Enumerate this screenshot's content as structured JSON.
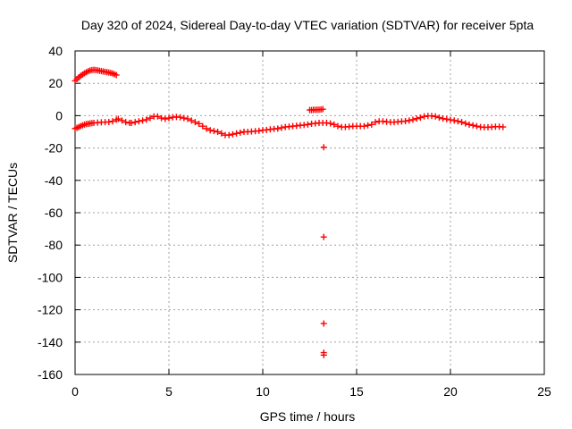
{
  "chart_data": {
    "type": "scatter",
    "title": "Day 320 of 2024, Sidereal Day-to-day VTEC variation (SDTVAR) for receiver 5pta",
    "xlabel": "GPS time / hours",
    "ylabel": "SDTVAR / TECUs",
    "xlim": [
      0,
      25
    ],
    "ylim": [
      -160,
      40
    ],
    "x_ticks": [
      0,
      5,
      10,
      15,
      20,
      25
    ],
    "y_ticks": [
      40,
      20,
      0,
      -20,
      -40,
      -60,
      -80,
      -100,
      -120,
      -140,
      -160
    ],
    "grid": true,
    "marker": "+",
    "color": "#ff0000",
    "series": [
      {
        "name": "upper arc",
        "x": [
          0.0,
          0.1,
          0.2,
          0.3,
          0.4,
          0.5,
          0.6,
          0.7,
          0.8,
          0.9,
          1.0,
          1.1,
          1.2,
          1.3,
          1.4,
          1.5,
          1.6,
          1.7,
          1.8,
          1.9,
          2.0,
          2.1,
          2.2
        ],
        "values": [
          21.5,
          22.6,
          23.7,
          24.6,
          25.4,
          26.2,
          26.9,
          27.5,
          27.9,
          28.2,
          28.3,
          28.2,
          28.0,
          27.8,
          27.6,
          27.3,
          27.1,
          26.9,
          26.7,
          26.4,
          26.1,
          25.6,
          25.1
        ]
      },
      {
        "name": "main trace",
        "x": [
          0.0,
          0.1,
          0.2,
          0.3,
          0.4,
          0.5,
          0.6,
          0.7,
          0.8,
          0.9,
          1.0,
          1.2,
          1.4,
          1.6,
          1.8,
          2.0,
          2.2,
          2.3,
          2.5,
          2.7,
          2.9,
          3.0,
          3.2,
          3.4,
          3.6,
          3.8,
          4.0,
          4.2,
          4.4,
          4.6,
          4.8,
          5.0,
          5.2,
          5.4,
          5.6,
          5.8,
          6.0,
          6.2,
          6.4,
          6.6,
          6.8,
          7.0,
          7.2,
          7.4,
          7.6,
          7.8,
          8.0,
          8.2,
          8.4,
          8.6,
          8.8,
          9.0,
          9.2,
          9.4,
          9.6,
          9.8,
          10.0,
          10.2,
          10.4,
          10.6,
          10.8,
          11.0,
          11.2,
          11.4,
          11.6,
          11.8,
          12.0,
          12.2,
          12.4,
          12.6,
          12.8,
          13.0,
          13.2,
          13.4,
          13.6,
          13.8,
          14.0,
          14.2,
          14.4,
          14.6,
          14.8,
          15.0,
          15.2,
          15.4,
          15.6,
          15.8,
          16.0,
          16.2,
          16.4,
          16.6,
          16.8,
          17.0,
          17.2,
          17.4,
          17.6,
          17.8,
          18.0,
          18.2,
          18.4,
          18.6,
          18.8,
          19.0,
          19.2,
          19.4,
          19.6,
          19.8,
          20.0,
          20.2,
          20.4,
          20.6,
          20.8,
          21.0,
          21.2,
          21.4,
          21.6,
          21.8,
          22.0,
          22.2,
          22.4,
          22.6,
          22.8
        ],
        "values": [
          -8.0,
          -7.5,
          -7.0,
          -6.5,
          -6.0,
          -5.5,
          -5.2,
          -5.0,
          -4.8,
          -4.6,
          -4.5,
          -4.3,
          -4.1,
          -4.0,
          -3.9,
          -3.5,
          -2.5,
          -2.0,
          -3.0,
          -4.0,
          -4.5,
          -4.5,
          -4.0,
          -3.5,
          -3.0,
          -2.5,
          -1.5,
          -0.5,
          -0.5,
          -1.5,
          -2.0,
          -1.5,
          -1.0,
          -0.8,
          -1.0,
          -1.5,
          -2.0,
          -3.0,
          -4.0,
          -5.0,
          -6.5,
          -8.0,
          -9.0,
          -9.5,
          -10.0,
          -11.0,
          -12.0,
          -12.0,
          -11.5,
          -11.0,
          -10.5,
          -10.0,
          -10.0,
          -9.8,
          -9.6,
          -9.4,
          -9.0,
          -8.8,
          -8.5,
          -8.2,
          -8.0,
          -7.5,
          -7.0,
          -6.8,
          -6.5,
          -6.3,
          -6.0,
          -5.8,
          -5.5,
          -5.0,
          -4.8,
          -4.5,
          -4.5,
          -4.5,
          -4.8,
          -5.5,
          -6.5,
          -7.0,
          -7.0,
          -6.8,
          -6.5,
          -6.5,
          -6.5,
          -6.5,
          -6.0,
          -5.5,
          -4.0,
          -3.5,
          -3.5,
          -3.8,
          -4.0,
          -4.0,
          -3.8,
          -3.6,
          -3.4,
          -3.0,
          -2.5,
          -1.8,
          -1.2,
          -0.5,
          -0.2,
          -0.2,
          -0.5,
          -1.2,
          -1.8,
          -2.2,
          -2.6,
          -3.0,
          -3.5,
          -4.0,
          -4.8,
          -5.5,
          -6.0,
          -6.5,
          -7.0,
          -7.2,
          -7.2,
          -7.0,
          -6.8,
          -6.8,
          -7.0
        ]
      },
      {
        "name": "short segment near 13 h",
        "x": [
          12.5,
          12.6,
          12.7,
          12.8,
          12.9,
          13.0,
          13.1,
          13.2
        ],
        "values": [
          3.5,
          3.5,
          3.6,
          3.6,
          3.7,
          3.7,
          3.8,
          4.0
        ]
      },
      {
        "name": "outliers",
        "x": [
          13.25,
          13.25,
          13.25,
          13.25,
          13.25
        ],
        "values": [
          -19.5,
          -75.0,
          -128.5,
          -146.5,
          -148.0
        ]
      }
    ]
  }
}
